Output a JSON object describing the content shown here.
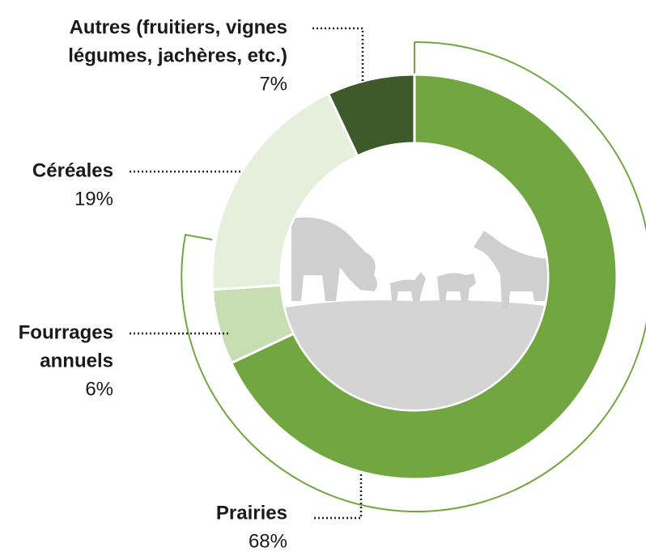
{
  "chart_data": {
    "type": "donut",
    "categories": [
      [
        "Prairies"
      ],
      [
        "Fourrages",
        "annuels"
      ],
      [
        "Céréales"
      ],
      [
        "Autres (fruitiers, vignes",
        "légumes, jachères, etc.)"
      ]
    ],
    "values": [
      68,
      6,
      19,
      7
    ],
    "value_labels": [
      "68%",
      "6%",
      "19%",
      "7%"
    ],
    "colors": [
      "#72a640",
      "#c6deb1",
      "#e5efdc",
      "#3f5a2a"
    ]
  }
}
